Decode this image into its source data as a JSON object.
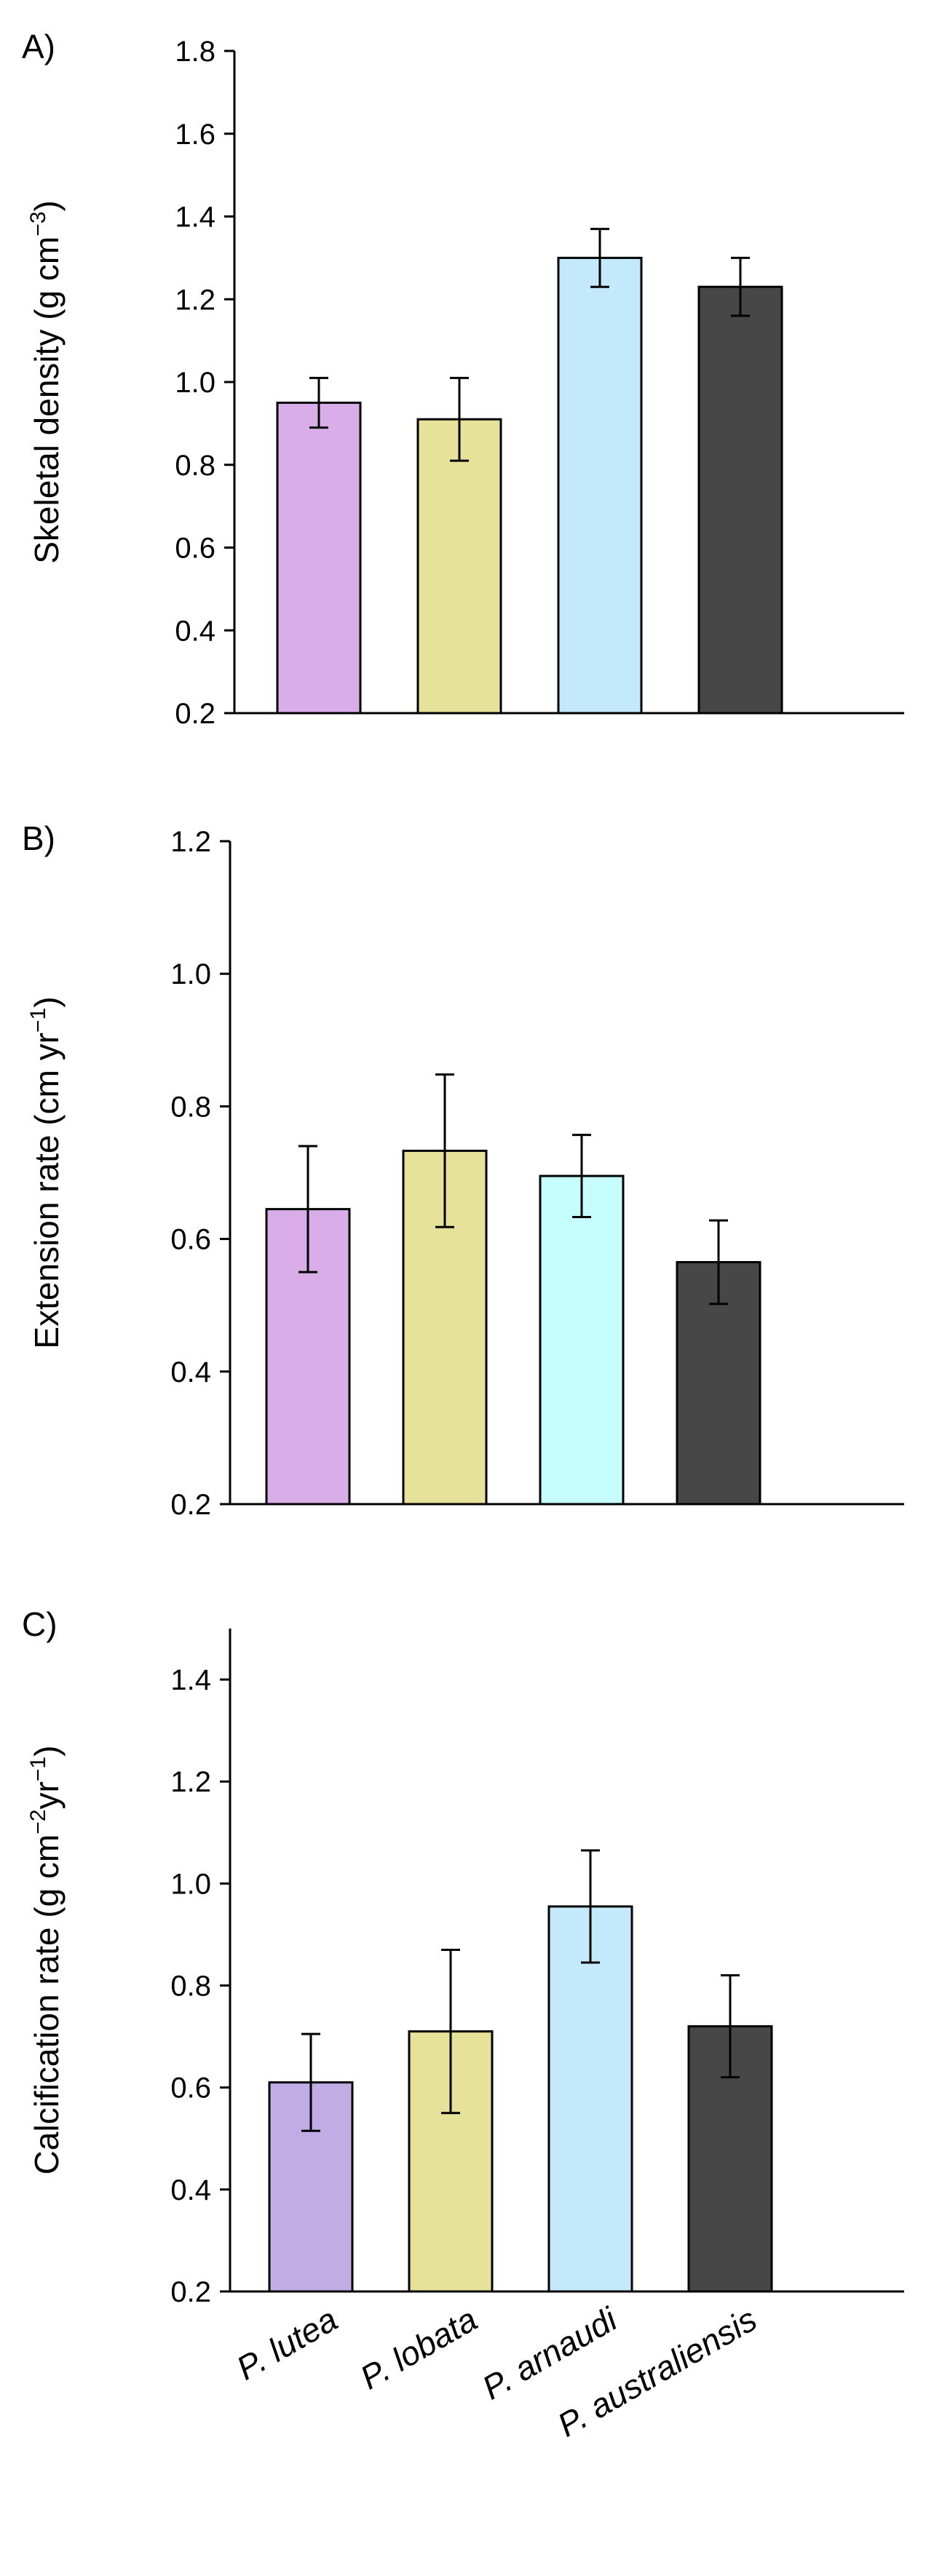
{
  "chart_data": [
    {
      "type": "bar",
      "panel_label": "A)",
      "ylabel": "Skeletal density (g cm",
      "ylabel_sup": "−3",
      "ylabel_close": ")",
      "categories": [
        "P. lutea",
        "P. lobata",
        "P. arnaudi",
        "P. australiensis"
      ],
      "values": [
        0.95,
        0.91,
        1.3,
        1.23
      ],
      "errors": [
        0.06,
        0.1,
        0.07,
        0.07
      ],
      "colors": [
        "#d9aee8",
        "#e6e29a",
        "#c3e9fa",
        "#474747"
      ],
      "ylim": [
        0.2,
        1.8
      ],
      "yticks": [
        "0.2",
        "0.4",
        "0.6",
        "0.8",
        "1.0",
        "1.2",
        "1.4",
        "1.6",
        "1.8"
      ]
    },
    {
      "type": "bar",
      "panel_label": "B)",
      "ylabel": "Extension rate (cm yr",
      "ylabel_sup": "−1",
      "ylabel_close": ")",
      "categories": [
        "P. lutea",
        "P. lobata",
        "P. arnaudi",
        "P. australiensis"
      ],
      "values": [
        0.645,
        0.733,
        0.695,
        0.565
      ],
      "errors": [
        0.095,
        0.115,
        0.062,
        0.063
      ],
      "colors": [
        "#d9aee8",
        "#e6e29a",
        "#c6fdfd",
        "#474747"
      ],
      "ylim": [
        0.2,
        1.2
      ],
      "yticks": [
        "0.2",
        "0.4",
        "0.6",
        "0.8",
        "1.0",
        "1.2"
      ]
    },
    {
      "type": "bar",
      "panel_label": "C)",
      "ylabel": "Calcification rate (g cm",
      "ylabel_sup": "−2",
      "ylabel_mid": "yr",
      "ylabel_sup2": "−1",
      "ylabel_close": ")",
      "categories": [
        "P. lutea",
        "P. lobata",
        "P. arnaudi",
        "P. australiensis"
      ],
      "values": [
        0.61,
        0.71,
        0.955,
        0.72
      ],
      "errors": [
        0.095,
        0.16,
        0.11,
        0.1
      ],
      "colors": [
        "#c2ace6",
        "#e6e29a",
        "#c3e9fa",
        "#474747"
      ],
      "ylim": [
        0.2,
        1.5
      ],
      "yticks": [
        "0.2",
        "0.4",
        "0.6",
        "0.8",
        "1.0",
        "1.2",
        "1.4"
      ]
    }
  ]
}
